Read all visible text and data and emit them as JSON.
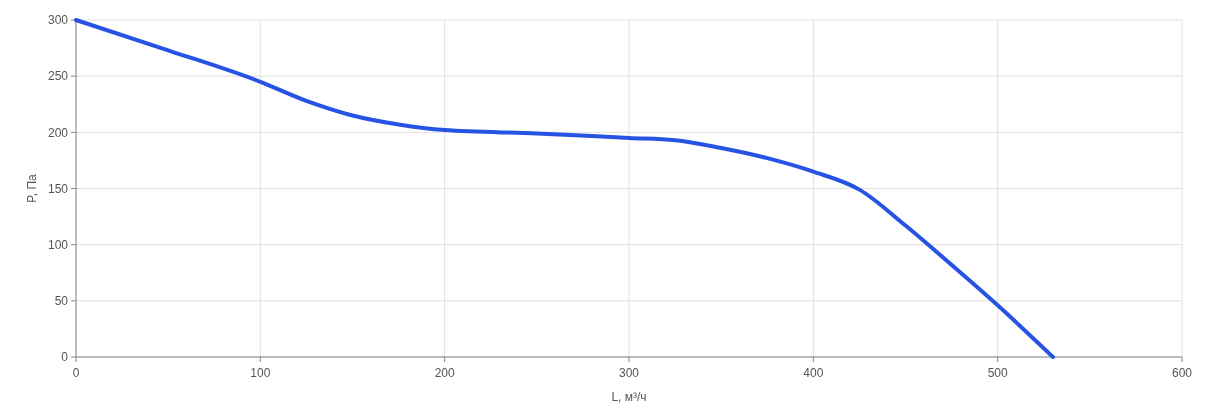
{
  "chart_data": {
    "type": "line",
    "xlabel": "L, м³/ч",
    "ylabel": "P, Па",
    "x": [
      0,
      50,
      100,
      125,
      150,
      175,
      200,
      250,
      300,
      325,
      350,
      375,
      400,
      425,
      450,
      475,
      500,
      530
    ],
    "series": [
      {
        "color": "#2653e3",
        "values": [
          300,
          273,
          245,
          228,
          215,
          207,
          202,
          199,
          195,
          193,
          186,
          177,
          165,
          149,
          117,
          82,
          46,
          0
        ]
      }
    ],
    "xlim": [
      0,
      600
    ],
    "xticks": [
      0,
      100,
      200,
      300,
      400,
      500,
      600
    ],
    "ylim": [
      0,
      300
    ],
    "yticks": [
      0,
      50,
      100,
      150,
      200,
      250,
      300
    ],
    "grid": true,
    "marker": "none",
    "line_style": "solid"
  }
}
